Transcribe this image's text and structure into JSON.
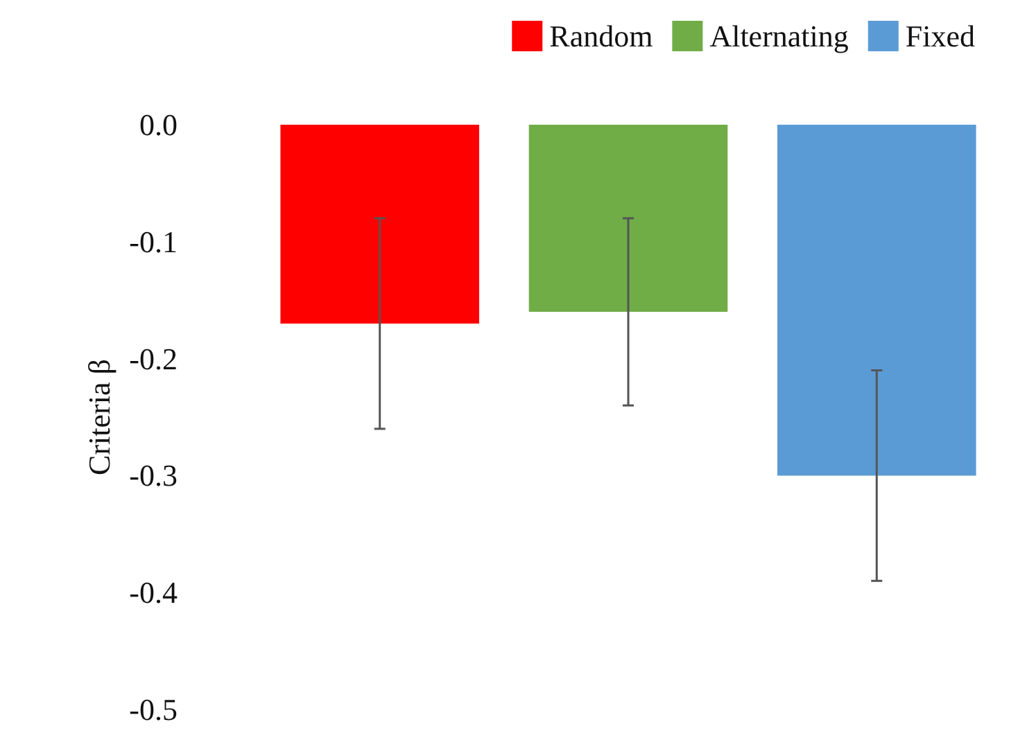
{
  "chart_data": {
    "type": "bar",
    "ylabel": "Criteria β",
    "categories": [
      null
    ],
    "series": [
      {
        "name": "Random",
        "color": "#ff0000",
        "values": [
          -0.17
        ],
        "errors": [
          0.09
        ]
      },
      {
        "name": "Alternating",
        "color": "#70ad47",
        "values": [
          -0.16
        ],
        "errors": [
          0.08
        ]
      },
      {
        "name": "Fixed",
        "color": "#5b9bd5",
        "values": [
          -0.3
        ],
        "errors": [
          0.09
        ]
      }
    ],
    "ylim": [
      -0.5,
      0
    ],
    "yticks": [
      {
        "value": 0,
        "label": "0.0"
      },
      {
        "value": -0.1,
        "label": "-0.1"
      },
      {
        "value": -0.2,
        "label": "-0.2"
      },
      {
        "value": -0.3,
        "label": "-0.3"
      },
      {
        "value": -0.4,
        "label": "-0.4"
      },
      {
        "value": -0.5,
        "label": "-0.5"
      }
    ],
    "grid": false,
    "legend": "top right"
  }
}
